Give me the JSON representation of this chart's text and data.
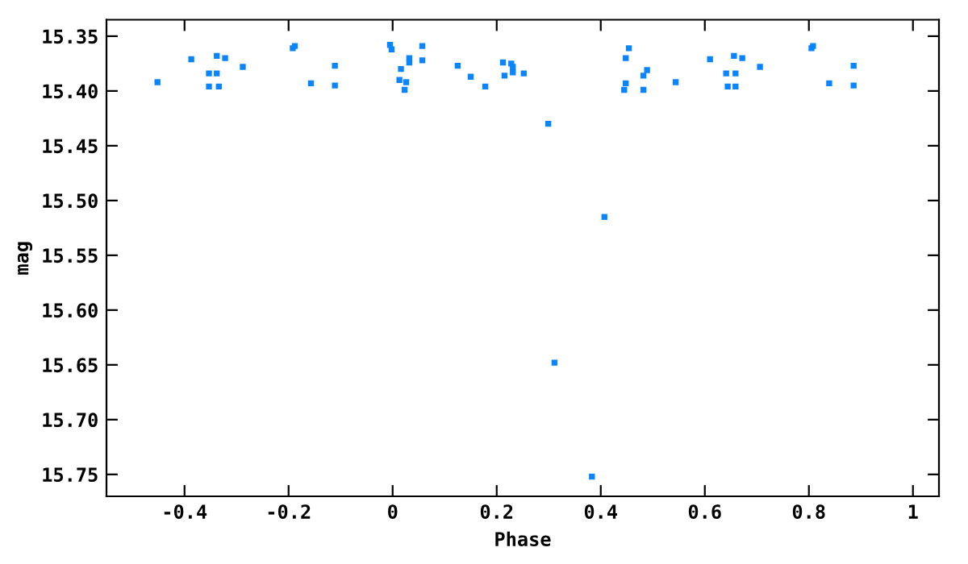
{
  "chart_data": {
    "type": "scatter",
    "xlabel": "Phase",
    "ylabel": "mag",
    "x": [
      -0.452,
      -0.387,
      -0.353,
      -0.338,
      -0.353,
      -0.334,
      -0.338,
      -0.322,
      -0.288,
      -0.192,
      -0.188,
      -0.157,
      -0.111,
      -0.111,
      -0.005,
      -0.002,
      0.016,
      0.013,
      0.026,
      0.023,
      0.032,
      0.032,
      0.057,
      0.057,
      0.125,
      0.15,
      0.178,
      0.212,
      0.215,
      0.228,
      0.231,
      0.231,
      0.252,
      0.299,
      0.448,
      0.454,
      0.489,
      0.482,
      0.448,
      0.445,
      0.482,
      0.544,
      0.61,
      0.641,
      0.656,
      0.672,
      0.659,
      0.644,
      0.659,
      0.706,
      0.805,
      0.808,
      0.839,
      0.886,
      0.886,
      0.407,
      0.311,
      0.383
    ],
    "series": [
      {
        "color": "#0a84ff",
        "values": [
          15.392,
          15.371,
          15.384,
          15.384,
          15.396,
          15.396,
          15.368,
          15.37,
          15.378,
          15.361,
          15.359,
          15.393,
          15.377,
          15.395,
          15.358,
          15.362,
          15.38,
          15.39,
          15.392,
          15.399,
          15.37,
          15.374,
          15.359,
          15.372,
          15.377,
          15.387,
          15.396,
          15.374,
          15.386,
          15.375,
          15.378,
          15.383,
          15.384,
          15.43,
          15.37,
          15.361,
          15.381,
          15.386,
          15.393,
          15.399,
          15.399,
          15.392,
          15.371,
          15.384,
          15.368,
          15.37,
          15.384,
          15.396,
          15.396,
          15.378,
          15.361,
          15.359,
          15.393,
          15.377,
          15.395,
          15.515,
          15.648,
          15.752
        ]
      }
    ],
    "xlim": [
      -0.55,
      1.05
    ],
    "ylim": [
      15.77,
      15.335
    ],
    "xticks": [
      -0.4,
      -0.2,
      0,
      0.2,
      0.4,
      0.6,
      0.8,
      1
    ],
    "yticks": [
      {
        "value": 15.35,
        "label": "15.35"
      },
      {
        "value": 15.4,
        "label": "15.40"
      },
      {
        "value": 15.45,
        "label": "15.45"
      },
      {
        "value": 15.5,
        "label": "15.50"
      },
      {
        "value": 15.55,
        "label": "15.55"
      },
      {
        "value": 15.6,
        "label": "15.60"
      },
      {
        "value": 15.65,
        "label": "15.65"
      },
      {
        "value": 15.7,
        "label": "15.70"
      },
      {
        "value": 15.75,
        "label": "15.75"
      }
    ],
    "grid": false,
    "legend": false,
    "marker": "square"
  }
}
